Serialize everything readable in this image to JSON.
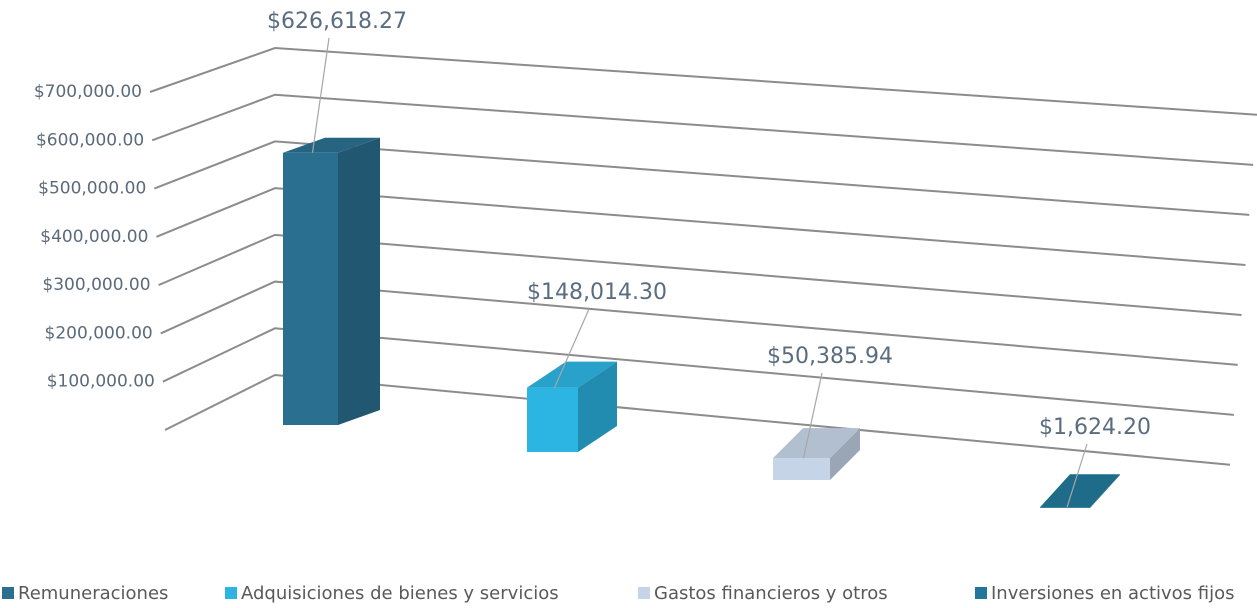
{
  "chart_data": {
    "type": "bar3d",
    "ylim": [
      0,
      700000
    ],
    "yticks": [
      {
        "value": 100000,
        "label": "$100,000.00"
      },
      {
        "value": 200000,
        "label": "$200,000.00"
      },
      {
        "value": 300000,
        "label": "$300,000.00"
      },
      {
        "value": 400000,
        "label": "$400,000.00"
      },
      {
        "value": 500000,
        "label": "$500,000.00"
      },
      {
        "value": 600000,
        "label": "$600,000.00"
      },
      {
        "value": 700000,
        "label": "$700,000.00"
      }
    ],
    "grid": true,
    "legend": "bottom",
    "series": [
      {
        "name": "Remuneraciones",
        "color": "#2a6f8f",
        "values": [
          626618.27
        ],
        "value_labels": [
          "$626,618.27"
        ]
      },
      {
        "name": "Adquisiciones de bienes y servicios",
        "color": "#2cb4e2",
        "values": [
          148014.3
        ],
        "value_labels": [
          "$148,014.30"
        ]
      },
      {
        "name": "Gastos financieros y otros",
        "color": "#c6d4e8",
        "values": [
          50385.94
        ],
        "value_labels": [
          "$50,385.94"
        ]
      },
      {
        "name": "Inversiones en activos fijos",
        "color": "#217799",
        "values": [
          1624.2
        ],
        "value_labels": [
          "$1,624.20"
        ]
      }
    ]
  }
}
